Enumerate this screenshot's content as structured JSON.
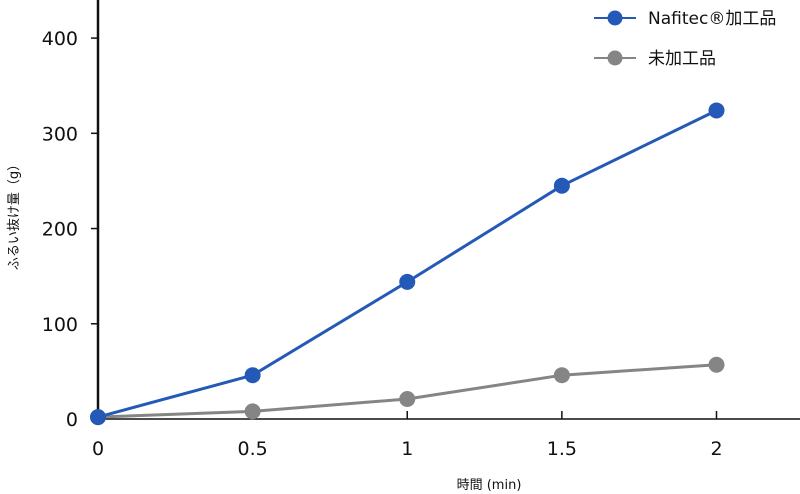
{
  "chart_data": {
    "type": "line",
    "x": [
      0,
      0.5,
      1,
      1.5,
      2
    ],
    "x_tick_labels": [
      "0",
      "0.5",
      "1",
      "1.5",
      "2"
    ],
    "y_tick_labels": [
      "0",
      "100",
      "200",
      "300",
      "400"
    ],
    "y_ticks": [
      0,
      100,
      200,
      300,
      400
    ],
    "xlim": [
      0,
      2.27
    ],
    "ylim": [
      0,
      440
    ],
    "xlabel": "時間 (min)",
    "ylabel": "ふるい抜け量（g）",
    "grid": false,
    "legend_position": "top-right",
    "series": [
      {
        "name": "Nafitec®加工品",
        "values": [
          2,
          46,
          144,
          245,
          324
        ],
        "color": "#2459b8"
      },
      {
        "name": "未加工品",
        "values": [
          2,
          8,
          21,
          46,
          57
        ],
        "color": "#858585"
      }
    ]
  }
}
